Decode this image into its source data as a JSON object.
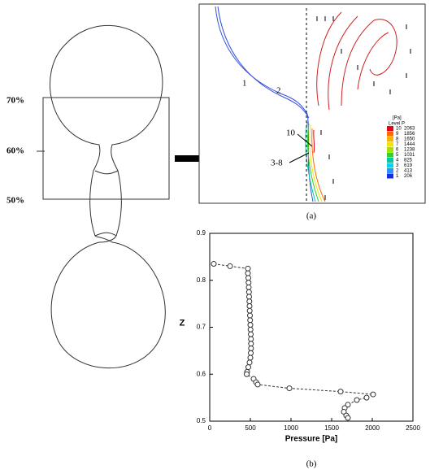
{
  "diagram": {
    "levels": [
      "70%",
      "60%",
      "50%"
    ]
  },
  "panel_a": {
    "labels": [
      "1",
      "2",
      "10",
      "3-8"
    ],
    "legend_unit": "[Pa]",
    "legend_title": "Level P",
    "legend": [
      {
        "level": "10",
        "value": "2063",
        "color": "#e8001c"
      },
      {
        "level": "9",
        "value": "1856",
        "color": "#ff6a00"
      },
      {
        "level": "8",
        "value": "1650",
        "color": "#ffb000"
      },
      {
        "level": "7",
        "value": "1444",
        "color": "#f2e600"
      },
      {
        "level": "6",
        "value": "1238",
        "color": "#a8e000"
      },
      {
        "level": "5",
        "value": "1031",
        "color": "#30d030"
      },
      {
        "level": "4",
        "value": "825",
        "color": "#00c8a0"
      },
      {
        "level": "3",
        "value": "619",
        "color": "#00d8f0"
      },
      {
        "level": "2",
        "value": "413",
        "color": "#3090ff"
      },
      {
        "level": "1",
        "value": "206",
        "color": "#1030e0"
      }
    ],
    "caption": "(a)"
  },
  "chart_data": {
    "type": "scatter",
    "xlabel": "Pressure [Pa]",
    "ylabel": "Z",
    "caption": "(b)",
    "color": "#333333",
    "xlim": [
      0,
      2500
    ],
    "xticks": [
      0,
      500,
      1000,
      1500,
      2000,
      2500
    ],
    "ylim": [
      0.5,
      0.9
    ],
    "yticks": [
      0.5,
      0.6,
      0.7,
      0.8,
      0.9
    ],
    "x": [
      50,
      250,
      470,
      470,
      475,
      478,
      480,
      483,
      485,
      488,
      490,
      492,
      495,
      497,
      500,
      502,
      505,
      507,
      508,
      508,
      505,
      500,
      490,
      475,
      460,
      455,
      540,
      570,
      590,
      980,
      1610,
      2010,
      1930,
      1810,
      1700,
      1660,
      1650,
      1680,
      1700
    ],
    "values": [
      0.835,
      0.83,
      0.825,
      0.815,
      0.805,
      0.795,
      0.785,
      0.775,
      0.765,
      0.755,
      0.745,
      0.735,
      0.725,
      0.715,
      0.705,
      0.695,
      0.685,
      0.675,
      0.665,
      0.655,
      0.645,
      0.635,
      0.625,
      0.615,
      0.605,
      0.6,
      0.59,
      0.583,
      0.578,
      0.57,
      0.563,
      0.557,
      0.55,
      0.545,
      0.535,
      0.528,
      0.52,
      0.512,
      0.507
    ]
  }
}
